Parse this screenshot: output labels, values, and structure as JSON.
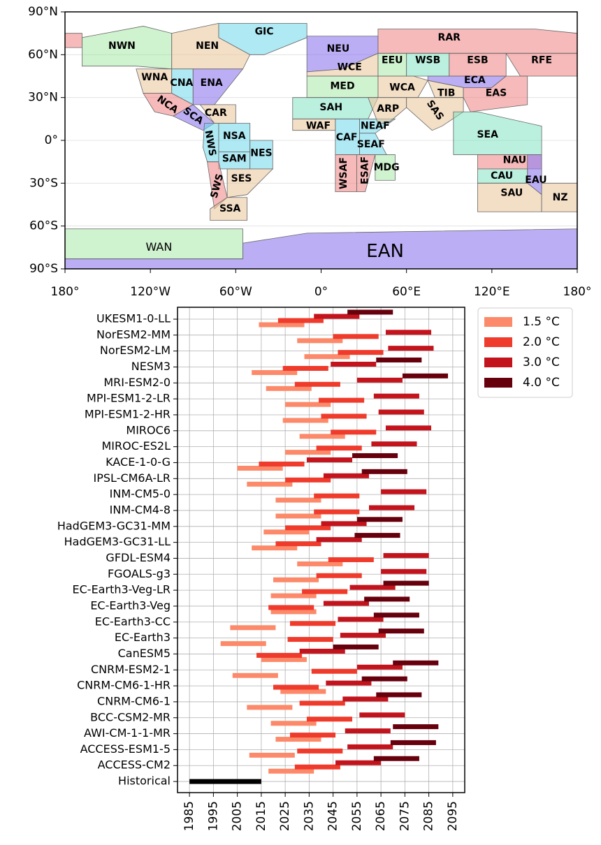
{
  "chart_data": [
    {
      "type": "map",
      "xlim": [
        -180,
        180
      ],
      "ylim": [
        -90,
        90
      ],
      "xticks": [
        {
          "value": -180,
          "label": "180°"
        },
        {
          "value": -120,
          "label": "120°W"
        },
        {
          "value": -60,
          "label": "60°W"
        },
        {
          "value": 0,
          "label": "0°"
        },
        {
          "value": 60,
          "label": "60°E"
        },
        {
          "value": 120,
          "label": "120°E"
        },
        {
          "value": 180,
          "label": "180°"
        }
      ],
      "yticks": [
        {
          "value": 90,
          "label": "90°N"
        },
        {
          "value": 60,
          "label": "60°N"
        },
        {
          "value": 30,
          "label": "30°N"
        },
        {
          "value": 0,
          "label": "0°"
        },
        {
          "value": -30,
          "label": "30°S"
        },
        {
          "value": -60,
          "label": "60°S"
        },
        {
          "value": -90,
          "label": "90°S"
        }
      ],
      "regions": [
        "NWN",
        "NEN",
        "GIC",
        "WNA",
        "CNA",
        "ENA",
        "NCA",
        "SCA",
        "CAR",
        "NWS",
        "NSA",
        "SAM",
        "NES",
        "SWS",
        "SES",
        "SSA",
        "NEU",
        "WCE",
        "MED",
        "SAH",
        "WAF",
        "CAF",
        "NEAF",
        "SEAF",
        "WSAF",
        "ESAF",
        "MDG",
        "RAR",
        "EEU",
        "WSB",
        "ESB",
        "RFE",
        "WCA",
        "ECA",
        "TIB",
        "EAS",
        "ARP",
        "SAS",
        "SEA",
        "NAU",
        "CAU",
        "EAU",
        "SAU",
        "NZ",
        "WAN",
        "EAN"
      ]
    },
    {
      "type": "range",
      "categories": [
        "UKESM1-0-LL",
        "NorESM2-MM",
        "NorESM2-LM",
        "NESM3",
        "MRI-ESM2-0",
        "MPI-ESM1-2-LR",
        "MPI-ESM1-2-HR",
        "MIROC6",
        "MIROC-ES2L",
        "KACE-1-0-G",
        "IPSL-CM6A-LR",
        "INM-CM5-0",
        "INM-CM4-8",
        "HadGEM3-GC31-MM",
        "HadGEM3-GC31-LL",
        "GFDL-ESM4",
        "FGOALS-g3",
        "EC-Earth3-Veg-LR",
        "EC-Earth3-Veg",
        "EC-Earth3-CC",
        "EC-Earth3",
        "CanESM5",
        "CNRM-ESM2-1",
        "CNRM-CM6-1-HR",
        "CNRM-CM6-1",
        "BCC-CSM2-MR",
        "AWI-CM-1-1-MR",
        "ACCESS-ESM1-5",
        "ACCESS-CM2"
      ],
      "series": [
        {
          "name": "1.5 °C",
          "color": "#fc8a6a",
          "values": [
            [
              2014,
              2033
            ],
            [
              2030,
              2049
            ],
            [
              2033,
              2052
            ],
            [
              2011,
              2030
            ],
            [
              2017,
              2036
            ],
            [
              2025,
              2044
            ],
            [
              2024,
              2043
            ],
            [
              2031,
              2050
            ],
            [
              2025,
              2044
            ],
            [
              2005,
              2024
            ],
            [
              2009,
              2028
            ],
            [
              2021,
              2040
            ],
            [
              2021,
              2040
            ],
            [
              2016,
              2035
            ],
            [
              2011,
              2030
            ],
            [
              2030,
              2049
            ],
            [
              2020,
              2039
            ],
            [
              2019,
              2038
            ],
            [
              2019,
              2038
            ],
            [
              2002,
              2021
            ],
            [
              1998,
              2017
            ],
            [
              2015,
              2034
            ],
            [
              2003,
              2022
            ],
            [
              2023,
              2042
            ],
            [
              2009,
              2028
            ],
            [
              2019,
              2038
            ],
            [
              2021,
              2040
            ],
            [
              2010,
              2029
            ],
            [
              2018,
              2037
            ]
          ]
        },
        {
          "name": "2.0 °C",
          "color": "#ef3b2c",
          "values": [
            [
              2022,
              2041
            ],
            [
              2045,
              2064
            ],
            [
              2047,
              2066
            ],
            [
              2024,
              2043
            ],
            [
              2029,
              2048
            ],
            [
              2039,
              2058
            ],
            [
              2040,
              2059
            ],
            [
              2044,
              2063
            ],
            [
              2038,
              2057
            ],
            [
              2014,
              2033
            ],
            [
              2025,
              2044
            ],
            [
              2037,
              2056
            ],
            [
              2037,
              2056
            ],
            [
              2025,
              2044
            ],
            [
              2021,
              2040
            ],
            [
              2043,
              2062
            ],
            [
              2038,
              2057
            ],
            [
              2032,
              2051
            ],
            [
              2018,
              2037
            ],
            [
              2027,
              2046
            ],
            [
              2026,
              2045
            ],
            [
              2013,
              2032
            ],
            [
              2036,
              2055
            ],
            [
              2020,
              2039
            ],
            [
              2031,
              2050
            ],
            [
              2034,
              2053
            ],
            [
              2027,
              2046
            ],
            [
              2030,
              2049
            ],
            [
              2029,
              2048
            ]
          ]
        },
        {
          "name": "3.0 °C",
          "color": "#c3141d",
          "values": [
            [
              2037,
              2056
            ],
            [
              2067,
              2086
            ],
            [
              2068,
              2087
            ],
            [
              2044,
              2063
            ],
            [
              2055,
              2074
            ],
            [
              2062,
              2081
            ],
            [
              2064,
              2083
            ],
            [
              2067,
              2086
            ],
            [
              2061,
              2080
            ],
            [
              2034,
              2053
            ],
            [
              2041,
              2060
            ],
            [
              2065,
              2084
            ],
            [
              2060,
              2079
            ],
            [
              2040,
              2059
            ],
            [
              2038,
              2057
            ],
            [
              2066,
              2085
            ],
            [
              2065,
              2084
            ],
            [
              2052,
              2071
            ],
            [
              2041,
              2060
            ],
            [
              2047,
              2066
            ],
            [
              2048,
              2067
            ],
            [
              2031,
              2050
            ],
            [
              2055,
              2074
            ],
            [
              2042,
              2061
            ],
            [
              2049,
              2068
            ],
            [
              2056,
              2075
            ],
            [
              2050,
              2069
            ],
            [
              2051,
              2070
            ],
            [
              2046,
              2065
            ]
          ]
        },
        {
          "name": "4.0 °C",
          "color": "#67000d",
          "values": [
            [
              2051,
              2070
            ],
            null,
            null,
            [
              2063,
              2082
            ],
            [
              2074,
              2093
            ],
            null,
            null,
            null,
            null,
            [
              2053,
              2072
            ],
            [
              2057,
              2076
            ],
            null,
            null,
            [
              2055,
              2074
            ],
            [
              2054,
              2073
            ],
            null,
            null,
            [
              2066,
              2085
            ],
            [
              2058,
              2077
            ],
            [
              2062,
              2081
            ],
            [
              2064,
              2083
            ],
            [
              2045,
              2064
            ],
            [
              2070,
              2089
            ],
            [
              2057,
              2076
            ],
            [
              2063,
              2082
            ],
            null,
            [
              2070,
              2089
            ],
            [
              2069,
              2088
            ],
            [
              2062,
              2081
            ]
          ]
        }
      ],
      "historical": {
        "label": "Historical",
        "color": "#000000",
        "range": [
          1985,
          2015
        ]
      },
      "xlim": [
        1980,
        2100
      ],
      "xticks": [
        1985,
        1995,
        2005,
        2015,
        2025,
        2035,
        2045,
        2055,
        2065,
        2075,
        2085,
        2095
      ],
      "grid": true,
      "legend": "outside upper right"
    }
  ]
}
